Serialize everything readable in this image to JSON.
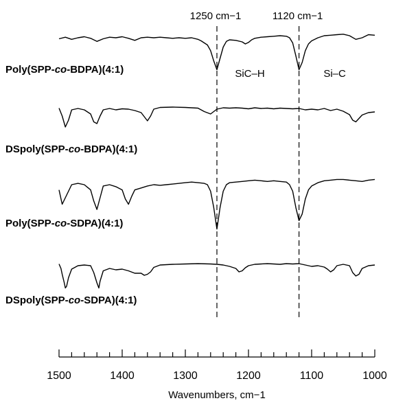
{
  "chart_data": {
    "type": "line",
    "title": "",
    "xlabel": "Wavenumbers, cm−1",
    "ylabel": "",
    "xlim": [
      1500,
      1000
    ],
    "x_reversed": true,
    "x_ticks": [
      1500,
      1400,
      1300,
      1200,
      1100,
      1000
    ],
    "grid": false,
    "legend": "none",
    "series_labels": [
      {
        "parts": [
          {
            "t": "Poly(SPP-"
          },
          {
            "t": "co",
            "i": true
          },
          {
            "t": "-BDPA)(4:1)"
          }
        ]
      },
      {
        "parts": [
          {
            "t": "DSpoly(SPP-"
          },
          {
            "t": "co",
            "i": true
          },
          {
            "t": "-BDPA)(4:1)"
          }
        ]
      },
      {
        "parts": [
          {
            "t": "Poly(SPP-"
          },
          {
            "t": "co",
            "i": true
          },
          {
            "t": "-SDPA)(4:1)"
          }
        ]
      },
      {
        "parts": [
          {
            "t": "DSpoly(SPP-"
          },
          {
            "t": "co",
            "i": true
          },
          {
            "t": "-SDPA)(4:1)"
          }
        ]
      }
    ],
    "reference_lines": [
      {
        "x": 1250,
        "label": "1250  cm−1",
        "band": "SiC–H"
      },
      {
        "x": 1120,
        "label": "1120  cm−1",
        "band": "Si–C"
      }
    ],
    "series": [
      {
        "x": [
          1500,
          1490,
          1480,
          1470,
          1460,
          1450,
          1440,
          1430,
          1420,
          1410,
          1400,
          1390,
          1380,
          1370,
          1360,
          1350,
          1340,
          1330,
          1320,
          1310,
          1300,
          1290,
          1280,
          1275,
          1270,
          1265,
          1260,
          1255,
          1250,
          1245,
          1240,
          1235,
          1230,
          1220,
          1210,
          1205,
          1200,
          1195,
          1190,
          1180,
          1170,
          1160,
          1150,
          1140,
          1135,
          1130,
          1125,
          1120,
          1115,
          1110,
          1105,
          1100,
          1090,
          1080,
          1070,
          1060,
          1050,
          1040,
          1030,
          1020,
          1010,
          1000
        ],
        "y": [
          0.78,
          0.81,
          0.77,
          0.8,
          0.82,
          0.79,
          0.73,
          0.78,
          0.81,
          0.8,
          0.82,
          0.79,
          0.75,
          0.8,
          0.81,
          0.8,
          0.81,
          0.8,
          0.79,
          0.8,
          0.79,
          0.8,
          0.77,
          0.74,
          0.7,
          0.66,
          0.55,
          0.35,
          0.18,
          0.4,
          0.62,
          0.73,
          0.76,
          0.75,
          0.72,
          0.68,
          0.71,
          0.76,
          0.79,
          0.81,
          0.82,
          0.83,
          0.84,
          0.83,
          0.8,
          0.7,
          0.45,
          0.18,
          0.32,
          0.55,
          0.68,
          0.74,
          0.8,
          0.84,
          0.85,
          0.86,
          0.87,
          0.84,
          0.77,
          0.8,
          0.86,
          0.85
        ]
      },
      {
        "x": [
          1500,
          1495,
          1490,
          1485,
          1480,
          1470,
          1460,
          1450,
          1445,
          1440,
          1435,
          1430,
          1420,
          1410,
          1400,
          1390,
          1380,
          1370,
          1365,
          1360,
          1355,
          1350,
          1340,
          1320,
          1300,
          1280,
          1270,
          1260,
          1250,
          1240,
          1230,
          1220,
          1210,
          1200,
          1190,
          1180,
          1170,
          1160,
          1150,
          1140,
          1130,
          1120,
          1110,
          1100,
          1090,
          1080,
          1070,
          1060,
          1050,
          1040,
          1035,
          1030,
          1025,
          1020,
          1010,
          1000
        ],
        "y": [
          0.85,
          0.62,
          0.3,
          0.5,
          0.8,
          0.84,
          0.8,
          0.68,
          0.45,
          0.4,
          0.62,
          0.8,
          0.84,
          0.8,
          0.83,
          0.82,
          0.78,
          0.72,
          0.6,
          0.48,
          0.62,
          0.82,
          0.87,
          0.88,
          0.87,
          0.85,
          0.75,
          0.68,
          0.82,
          0.86,
          0.85,
          0.86,
          0.85,
          0.83,
          0.86,
          0.84,
          0.85,
          0.83,
          0.85,
          0.84,
          0.83,
          0.84,
          0.8,
          0.82,
          0.8,
          0.84,
          0.78,
          0.82,
          0.76,
          0.66,
          0.5,
          0.45,
          0.55,
          0.65,
          0.72,
          0.74
        ]
      },
      {
        "x": [
          1500,
          1495,
          1490,
          1480,
          1470,
          1460,
          1450,
          1445,
          1440,
          1435,
          1430,
          1420,
          1410,
          1400,
          1395,
          1390,
          1385,
          1380,
          1370,
          1360,
          1350,
          1340,
          1330,
          1320,
          1310,
          1300,
          1290,
          1280,
          1270,
          1265,
          1260,
          1255,
          1250,
          1245,
          1240,
          1235,
          1230,
          1220,
          1210,
          1200,
          1190,
          1180,
          1170,
          1160,
          1150,
          1140,
          1135,
          1130,
          1125,
          1120,
          1115,
          1110,
          1105,
          1100,
          1090,
          1080,
          1070,
          1060,
          1050,
          1040,
          1030,
          1020,
          1010,
          1000
        ],
        "y": [
          0.72,
          0.5,
          0.6,
          0.8,
          0.82,
          0.8,
          0.72,
          0.55,
          0.42,
          0.6,
          0.78,
          0.8,
          0.77,
          0.72,
          0.58,
          0.5,
          0.62,
          0.72,
          0.75,
          0.78,
          0.8,
          0.79,
          0.8,
          0.81,
          0.82,
          0.83,
          0.84,
          0.83,
          0.82,
          0.8,
          0.7,
          0.45,
          0.12,
          0.45,
          0.7,
          0.8,
          0.83,
          0.84,
          0.85,
          0.86,
          0.87,
          0.86,
          0.85,
          0.86,
          0.85,
          0.84,
          0.8,
          0.7,
          0.45,
          0.25,
          0.35,
          0.58,
          0.72,
          0.78,
          0.83,
          0.86,
          0.87,
          0.88,
          0.88,
          0.87,
          0.86,
          0.85,
          0.87,
          0.88
        ]
      },
      {
        "x": [
          1500,
          1497,
          1495,
          1492,
          1490,
          1488,
          1485,
          1480,
          1470,
          1460,
          1450,
          1445,
          1440,
          1437,
          1435,
          1430,
          1420,
          1410,
          1400,
          1390,
          1380,
          1370,
          1365,
          1360,
          1355,
          1350,
          1340,
          1320,
          1300,
          1280,
          1260,
          1250,
          1240,
          1230,
          1220,
          1215,
          1210,
          1205,
          1200,
          1190,
          1180,
          1170,
          1160,
          1150,
          1140,
          1130,
          1120,
          1110,
          1100,
          1090,
          1080,
          1075,
          1070,
          1065,
          1060,
          1050,
          1040,
          1035,
          1030,
          1025,
          1020,
          1010,
          1000
        ],
        "y": [
          0.85,
          0.72,
          0.55,
          0.32,
          0.15,
          0.2,
          0.45,
          0.7,
          0.8,
          0.82,
          0.8,
          0.6,
          0.3,
          0.15,
          0.35,
          0.65,
          0.72,
          0.68,
          0.7,
          0.65,
          0.58,
          0.58,
          0.52,
          0.55,
          0.62,
          0.75,
          0.82,
          0.84,
          0.85,
          0.86,
          0.85,
          0.84,
          0.82,
          0.78,
          0.72,
          0.62,
          0.65,
          0.74,
          0.8,
          0.84,
          0.85,
          0.86,
          0.85,
          0.84,
          0.86,
          0.85,
          0.86,
          0.82,
          0.78,
          0.8,
          0.76,
          0.7,
          0.62,
          0.68,
          0.8,
          0.84,
          0.8,
          0.6,
          0.5,
          0.55,
          0.72,
          0.8,
          0.82
        ]
      }
    ]
  }
}
